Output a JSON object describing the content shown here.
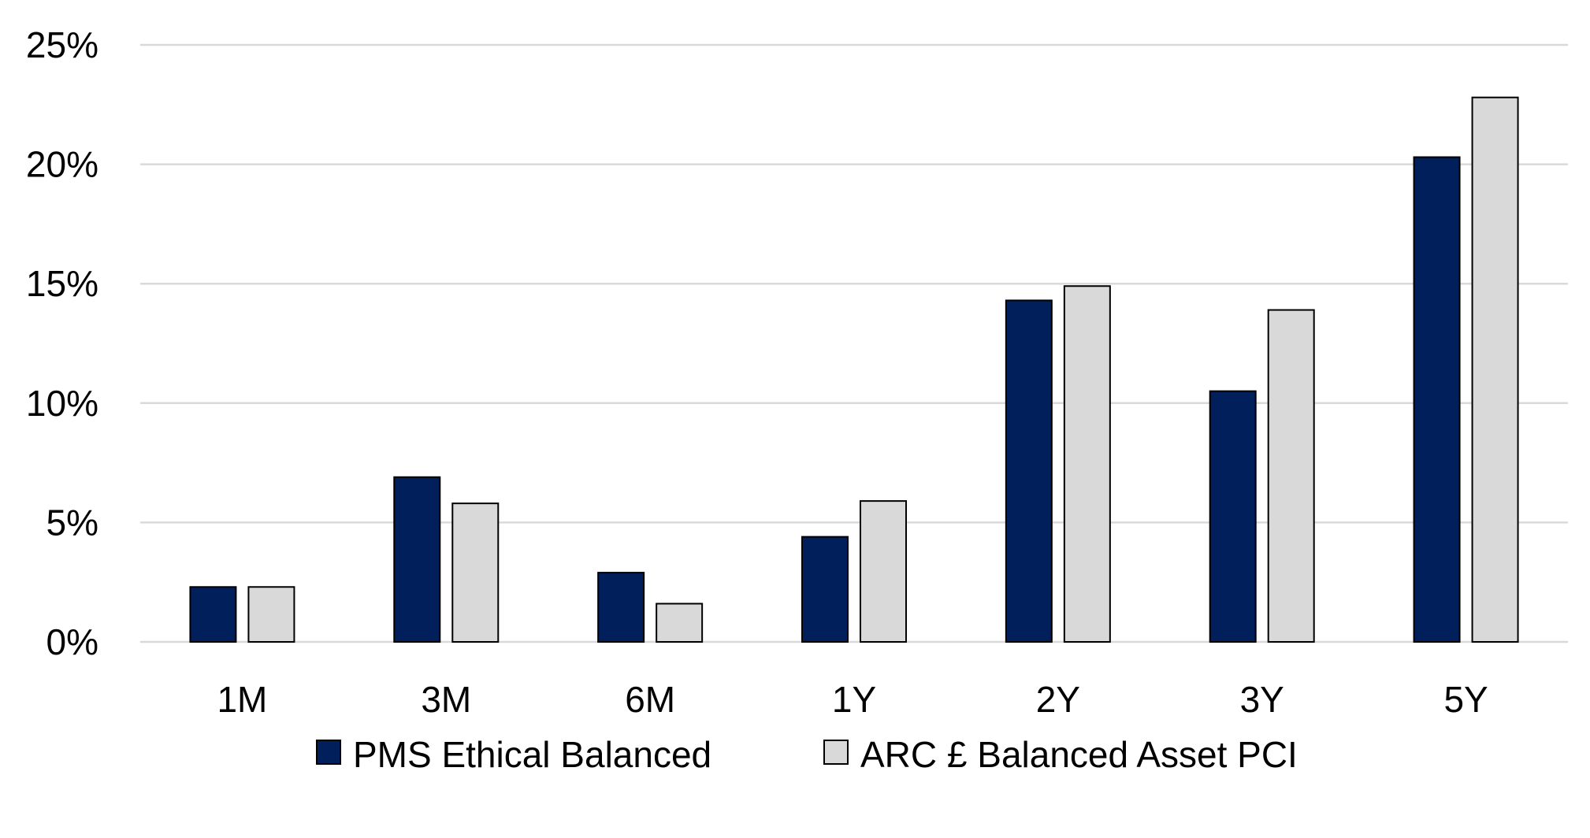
{
  "chart_data": {
    "type": "bar",
    "title": "",
    "xlabel": "",
    "ylabel": "",
    "categories": [
      "1M",
      "3M",
      "6M",
      "1Y",
      "2Y",
      "3Y",
      "5Y"
    ],
    "series": [
      {
        "name": "PMS Ethical Balanced",
        "color": "#001F5B",
        "values": [
          2.3,
          6.9,
          2.9,
          4.4,
          14.3,
          10.5,
          20.3
        ]
      },
      {
        "name": "ARC £ Balanced Asset PCI",
        "color": "#D9D9D9",
        "values": [
          2.3,
          5.8,
          1.6,
          5.9,
          14.9,
          13.9,
          22.8
        ]
      }
    ],
    "ylim": [
      0,
      25
    ],
    "yticks": [
      0,
      5,
      10,
      15,
      20,
      25
    ],
    "ytick_labels": [
      "0%",
      "5%",
      "10%",
      "15%",
      "20%",
      "25%"
    ],
    "grid": true,
    "legend_position": "bottom"
  }
}
